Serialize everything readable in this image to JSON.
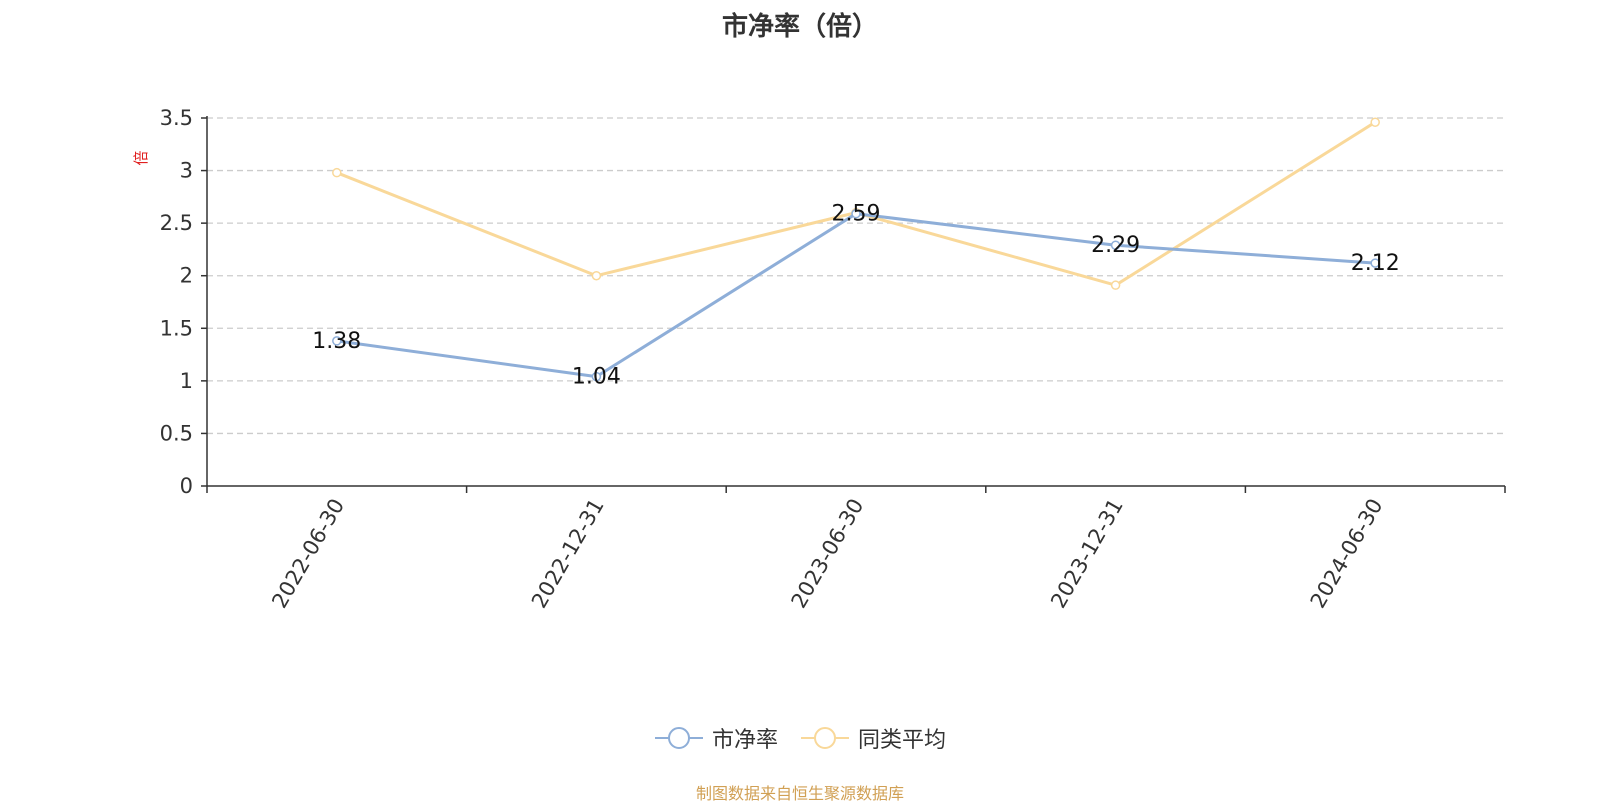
{
  "chart_data": {
    "type": "line",
    "title": "市净率（倍）",
    "ylabel": "倍",
    "xlabel": "",
    "categories": [
      "2022-06-30",
      "2022-12-31",
      "2023-06-30",
      "2023-12-31",
      "2024-06-30"
    ],
    "ylim": [
      0,
      3.5
    ],
    "yticks": [
      "0",
      "0.5",
      "1",
      "1.5",
      "2",
      "2.5",
      "3",
      "3.5"
    ],
    "grid": "horizontal-dashed",
    "legend_position": "bottom-center",
    "series": [
      {
        "name": "市净率",
        "values": [
          1.38,
          1.04,
          2.59,
          2.29,
          2.12
        ],
        "color": "#8eaed8",
        "data_labels": [
          "1.38",
          "1.04",
          "2.59",
          "2.29",
          "2.12"
        ]
      },
      {
        "name": "同类平均",
        "values": [
          2.98,
          2.0,
          2.6,
          1.91,
          3.46
        ],
        "color": "#f9d899"
      }
    ]
  },
  "footer": {
    "source": "制图数据来自恒生聚源数据库"
  },
  "colors": {
    "ylabel": "#e02020",
    "axis": "#333333",
    "grid": "#cccccc",
    "source": "#d1a054"
  }
}
